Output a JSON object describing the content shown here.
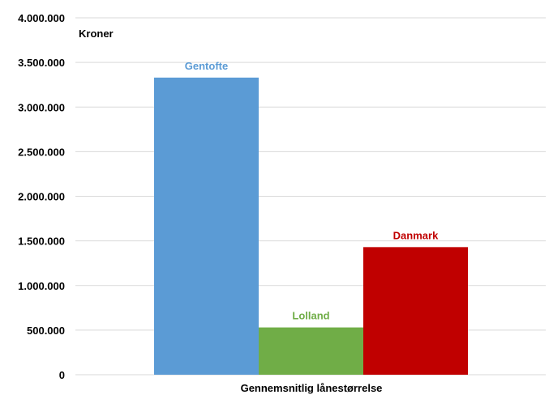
{
  "chart_data": {
    "type": "bar",
    "ylabel": "Kroner",
    "xlabel": "",
    "categories": [
      "Gennemsnitlig lånestørrelse"
    ],
    "series": [
      {
        "name": "Gentofte",
        "values": [
          3330000
        ],
        "color": "#5b9bd5"
      },
      {
        "name": "Lolland",
        "values": [
          530000
        ],
        "color": "#70ad47"
      },
      {
        "name": "Danmark",
        "values": [
          1430000
        ],
        "color": "#c00000"
      }
    ],
    "ylim": [
      0,
      4000000
    ],
    "yticks": [
      {
        "value": 0,
        "label": "0"
      },
      {
        "value": 500000,
        "label": "500.000"
      },
      {
        "value": 1000000,
        "label": "1.000.000"
      },
      {
        "value": 1500000,
        "label": "1.500.000"
      },
      {
        "value": 2000000,
        "label": "2.000.000"
      },
      {
        "value": 2500000,
        "label": "2.500.000"
      },
      {
        "value": 3000000,
        "label": "3.000.000"
      },
      {
        "value": 3500000,
        "label": "3.500.000"
      },
      {
        "value": 4000000,
        "label": "4.000.000"
      }
    ],
    "grid": true,
    "legend": "none"
  }
}
